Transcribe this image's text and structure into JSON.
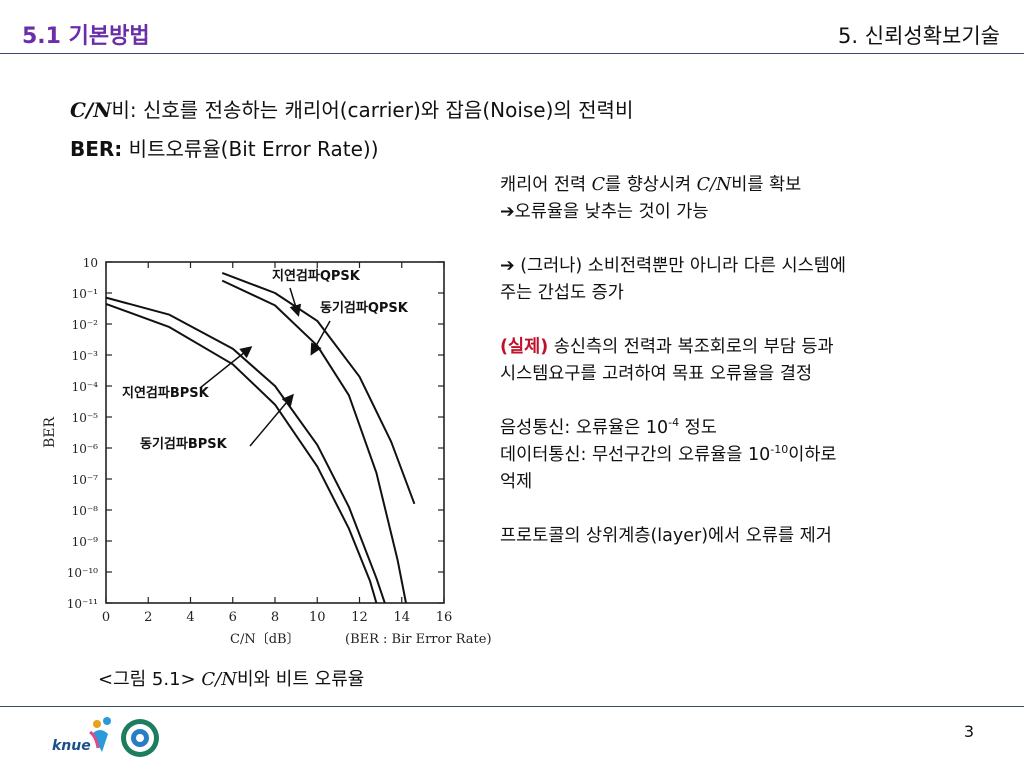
{
  "header": {
    "section_title": "5.1 기본방법",
    "chapter_title": "5. 신뢰성확보기술"
  },
  "definitions": {
    "cn_symbol": "C/N",
    "cn_text": "비: 신호를 전송하는 캐리어(carrier)와 잡음(Noise)의 전력비",
    "ber_label": "BER:",
    "ber_text": " 비트오류율(Bit Error Rate))"
  },
  "notes": {
    "line1_a": "캐리어 전력 ",
    "line1_c": "C",
    "line1_b": "를 향상시켜 ",
    "line1_cn": "C/N",
    "line1_c2": "비를 확보",
    "line2": "오류율을 낮추는 것이 가능",
    "line3": " (그러나) 소비전력뿐만 아니라 다른 시스템에",
    "line4": "주는 간섭도 증가",
    "line5_red": "(실제)",
    "line5": " 송신측의 전력과 복조회로의 부담 등과",
    "line6": "시스템요구를 고려하여 목표 오류율을 결정",
    "line7_a": "음성통신: 오류율은 10",
    "line7_sup": "-4",
    "line7_b": " 정도",
    "line8_a": "데이터통신: 무선구간의 오류율을 10",
    "line8_sup": "-10",
    "line8_b": "이하로",
    "line9": "억제",
    "line10": "프로토콜의 상위계층(layer)에서 오류를 제거"
  },
  "chart_data": {
    "type": "line",
    "ylabel": "BER",
    "xlabel": "C/N〔dB〕",
    "xlabel_note": "(BER : Bir Error Rate)",
    "x_ticks": [
      "0",
      "2",
      "4",
      "6",
      "8",
      "10",
      "12",
      "14",
      "16"
    ],
    "y_ticks": [
      "10",
      "10⁻¹",
      "10⁻²",
      "10⁻³",
      "10⁻⁴",
      "10⁻⁵",
      "10⁻⁶",
      "10⁻⁷",
      "10⁻⁸",
      "10⁻⁹",
      "10⁻¹⁰",
      "10⁻¹¹"
    ],
    "xlim": [
      0,
      16
    ],
    "ylim_exp": [
      0,
      -11
    ],
    "series": [
      {
        "name": "지연검파QPSK",
        "points": [
          [
            5.5,
            -0.35
          ],
          [
            8,
            -1.0
          ],
          [
            10,
            -1.9
          ],
          [
            12,
            -3.7
          ],
          [
            13.5,
            -5.8
          ],
          [
            14.6,
            -7.8
          ]
        ]
      },
      {
        "name": "동기검파QPSK",
        "points": [
          [
            5.5,
            -0.6
          ],
          [
            8,
            -1.4
          ],
          [
            10,
            -2.7
          ],
          [
            11.5,
            -4.3
          ],
          [
            12.8,
            -6.8
          ],
          [
            13.8,
            -9.6
          ],
          [
            14.2,
            -11
          ]
        ]
      },
      {
        "name": "지연검파BPSK",
        "points": [
          [
            0,
            -1.15
          ],
          [
            3,
            -1.7
          ],
          [
            6,
            -2.8
          ],
          [
            8,
            -4.0
          ],
          [
            10,
            -5.9
          ],
          [
            11.5,
            -7.9
          ],
          [
            12.8,
            -10.2
          ],
          [
            13.2,
            -11
          ]
        ]
      },
      {
        "name": "동기검파BPSK",
        "points": [
          [
            0,
            -1.35
          ],
          [
            3,
            -2.1
          ],
          [
            6,
            -3.3
          ],
          [
            8,
            -4.6
          ],
          [
            10,
            -6.6
          ],
          [
            11.5,
            -8.6
          ],
          [
            12.5,
            -10.3
          ],
          [
            12.8,
            -11
          ]
        ]
      }
    ]
  },
  "caption": {
    "prefix": "<그림 5.1> ",
    "symbol": "C/N",
    "suffix": "비와 비트 오류율"
  },
  "footer": {
    "page_number": "3",
    "logo_text": "knue"
  },
  "colors": {
    "accent": "#6a2ea8",
    "highlight": "#c0102a",
    "rule": "#3a4a66"
  }
}
